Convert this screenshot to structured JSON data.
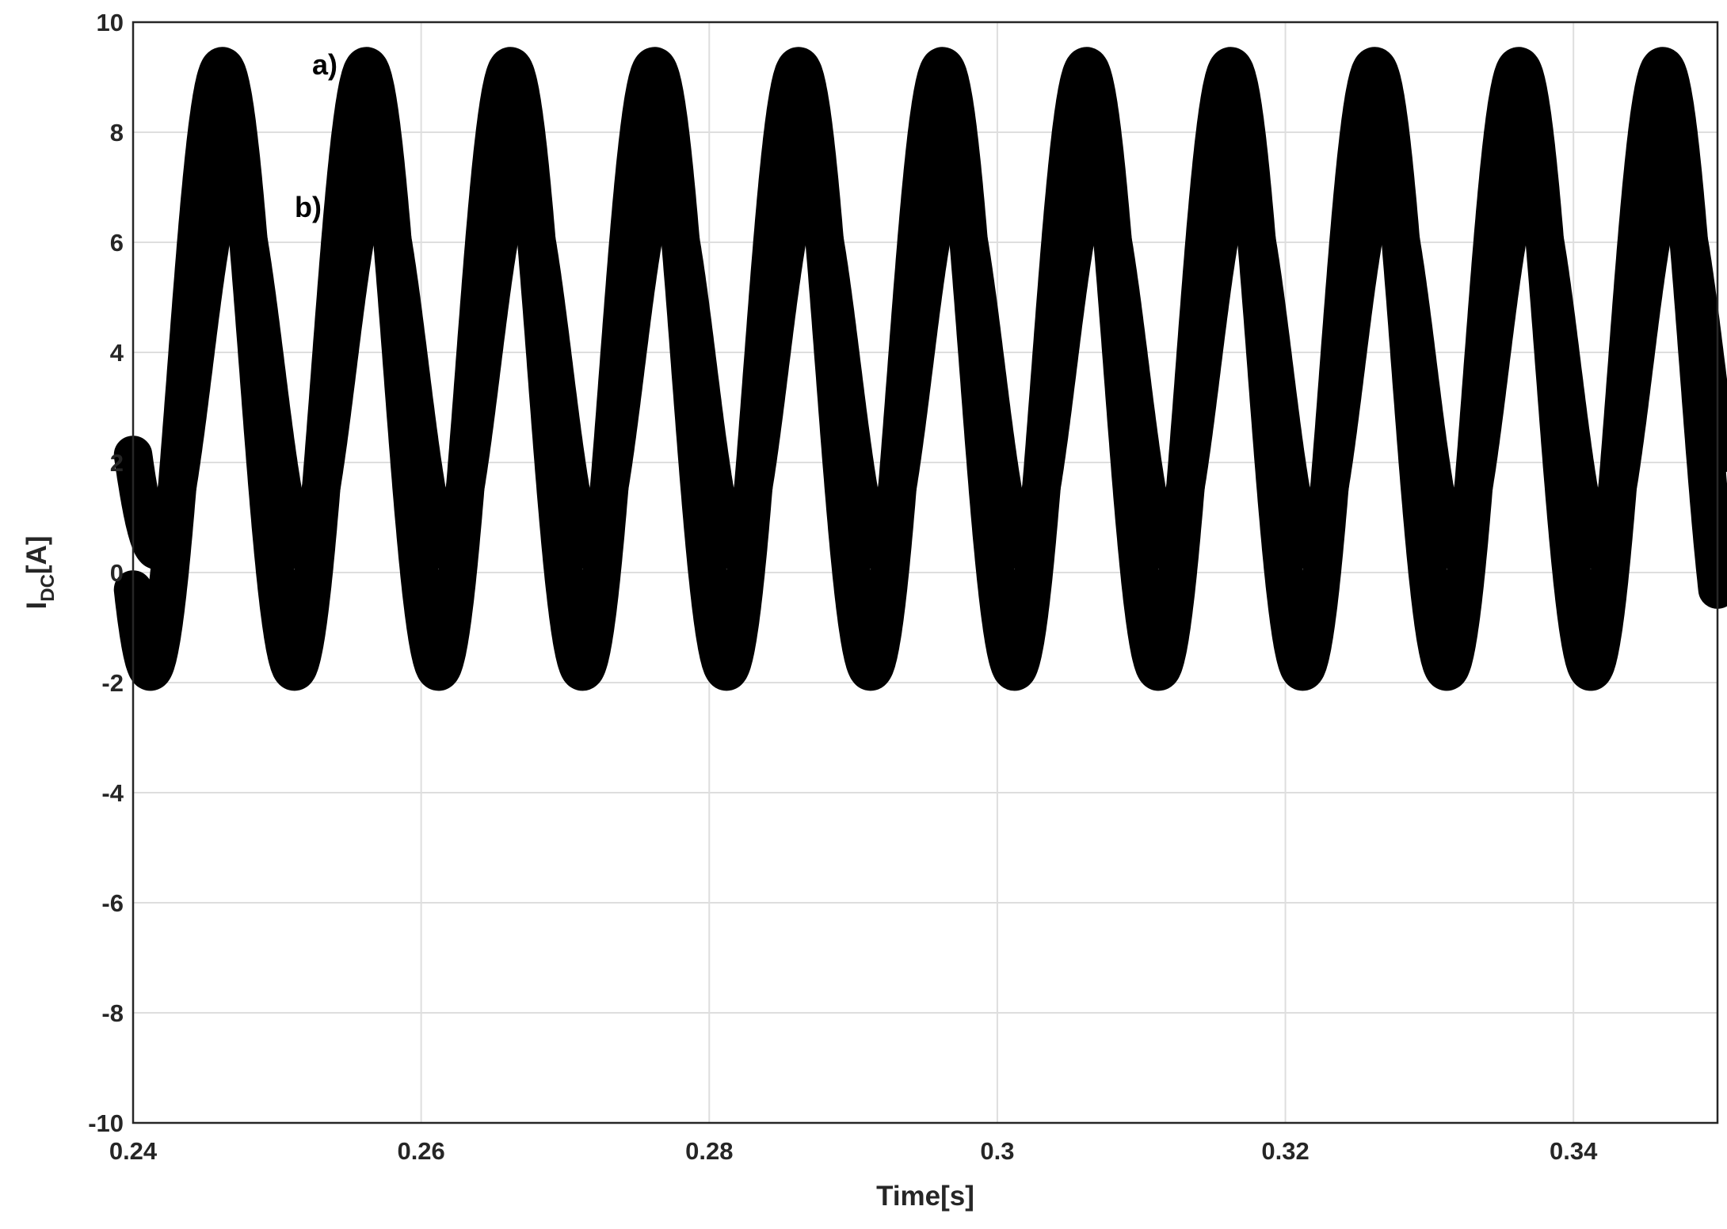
{
  "chart_data": {
    "type": "line",
    "title": "",
    "xlabel": "Time[s]",
    "ylabel_main": "I",
    "ylabel_sub": "DC",
    "ylabel_unit": "[A]",
    "xlim": [
      0.24,
      0.35
    ],
    "ylim": [
      -10,
      10
    ],
    "xticks": [
      0.24,
      0.26,
      0.28,
      0.3,
      0.32,
      0.34
    ],
    "xtick_labels": [
      "0.24",
      "0.26",
      "0.28",
      "0.3",
      "0.32",
      "0.34"
    ],
    "yticks": [
      -10,
      -8,
      -6,
      -4,
      -2,
      0,
      2,
      4,
      6,
      8,
      10
    ],
    "ytick_labels": [
      "-10",
      "-8",
      "-6",
      "-4",
      "-2",
      "0",
      "2",
      "4",
      "6",
      "8",
      "10"
    ],
    "grid": true,
    "series": [
      {
        "label": "a)",
        "frequency_hz": 100,
        "offset": 3.7,
        "amplitude": 5.5,
        "peak_time": 0.2462,
        "ripple_band": 0.7,
        "color": "#000000"
      },
      {
        "label": "b)",
        "frequency_hz": 100,
        "offset": 3.75,
        "amplitude": 3.35,
        "peak_time": 0.2467,
        "ripple_band": 0.7,
        "color": "#000000"
      }
    ]
  }
}
